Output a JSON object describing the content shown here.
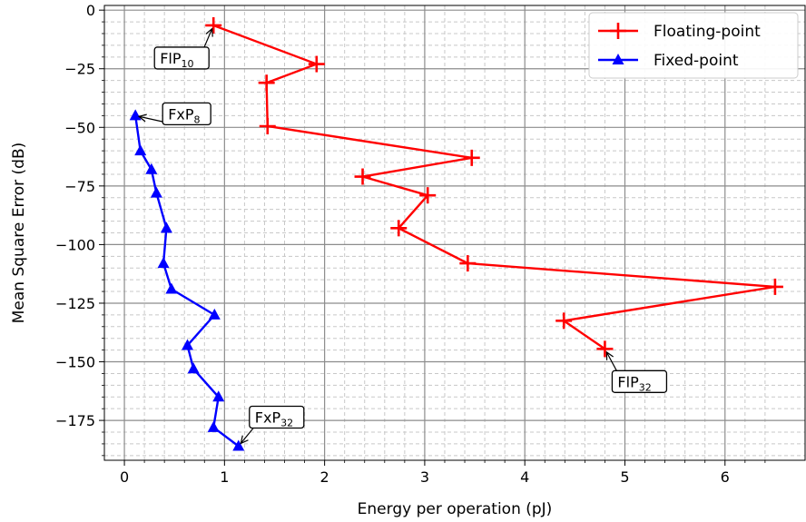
{
  "chart_data": {
    "type": "line",
    "title": "",
    "xlabel": "Energy per operation (pJ)",
    "ylabel": "Mean Square Error (dB)",
    "xlim": [
      -0.2,
      6.8
    ],
    "ylim": [
      -192,
      2
    ],
    "xticks": [
      "0",
      "1",
      "2",
      "3",
      "4",
      "5",
      "6"
    ],
    "yticks": [
      "0",
      "−25",
      "−50",
      "−75",
      "−100",
      "−125",
      "−150",
      "−175"
    ],
    "grid": true,
    "legend_position": "top-right",
    "series": [
      {
        "name": "Floating-point",
        "color": "#ff0000",
        "marker": "plus",
        "x": [
          0.89,
          1.92,
          1.42,
          1.43,
          3.47,
          2.38,
          3.03,
          2.74,
          3.43,
          6.5,
          4.39,
          4.8
        ],
        "y": [
          -6.5,
          -23,
          -31,
          -49.5,
          -63,
          -71,
          -79,
          -93,
          -108,
          -118,
          -132.5,
          -144.5
        ]
      },
      {
        "name": "Fixed-point",
        "color": "#0000ff",
        "marker": "triangle",
        "x": [
          0.11,
          0.16,
          0.27,
          0.32,
          0.42,
          0.39,
          0.47,
          0.9,
          0.63,
          0.69,
          0.94,
          0.89,
          1.14
        ],
        "y": [
          -45,
          -60,
          -68,
          -78,
          -93,
          -108,
          -119,
          -130,
          -143,
          -153,
          -165,
          -178,
          -186
        ]
      }
    ],
    "annotations": [
      {
        "main": "FlP",
        "sub": "10",
        "point_x": 0.89,
        "point_y": -6.5
      },
      {
        "main": "FxP",
        "sub": "8",
        "point_x": 0.11,
        "point_y": -45
      },
      {
        "main": "FxP",
        "sub": "32",
        "point_x": 1.14,
        "point_y": -186
      },
      {
        "main": "FlP",
        "sub": "32",
        "point_x": 4.8,
        "point_y": -144.5
      }
    ]
  }
}
